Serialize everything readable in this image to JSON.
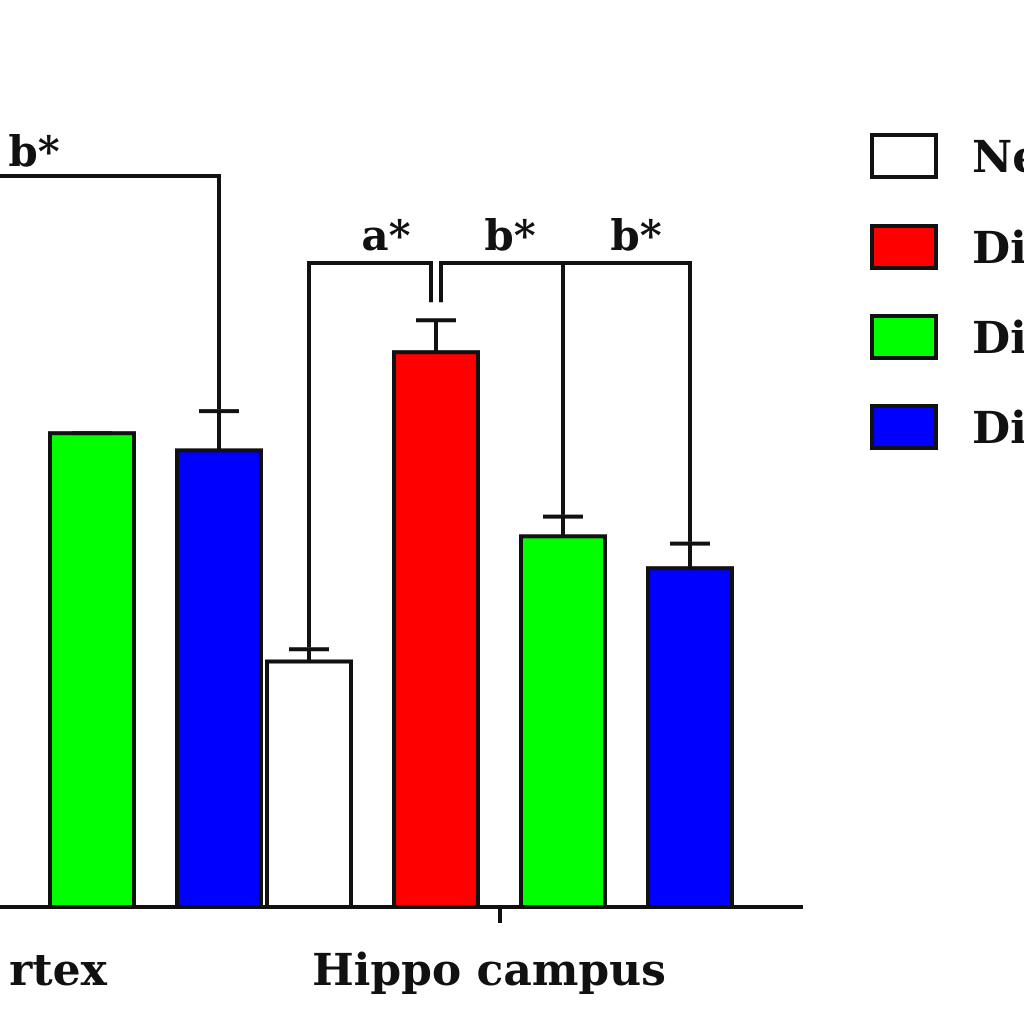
{
  "chart_data": {
    "type": "bar",
    "categories": [
      "Cortex",
      "Hippo campus"
    ],
    "category_labels_visible": [
      "rtex",
      "Hippo campus"
    ],
    "series": [
      {
        "name": "Ne",
        "color": "#ffffff",
        "values": [
          null,
          1.0
        ]
      },
      {
        "name": "Di",
        "color": "#ff0000",
        "values": [
          null,
          2.26
        ]
      },
      {
        "name": "Di",
        "color": "#00ff00",
        "values": [
          1.93,
          1.51
        ]
      },
      {
        "name": "Di",
        "color": "#0000ff",
        "values": [
          1.86,
          1.38
        ]
      }
    ],
    "errors": [
      [
        null,
        0.05
      ],
      [
        null,
        0.13
      ],
      [
        null,
        0.08
      ],
      [
        0.16,
        0.1
      ]
    ],
    "ylim": [
      0,
      3
    ],
    "annotations": [
      {
        "text": "b*",
        "group": "Cortex"
      },
      {
        "text": "a*",
        "group": "Hippo campus"
      },
      {
        "text": "b*",
        "group": "Hippo campus"
      },
      {
        "text": "b*",
        "group": "Hippo campus"
      }
    ],
    "legend_position": "right",
    "legend_entries": [
      "Ne",
      "Di",
      "Di",
      "Di"
    ],
    "grid": false
  }
}
